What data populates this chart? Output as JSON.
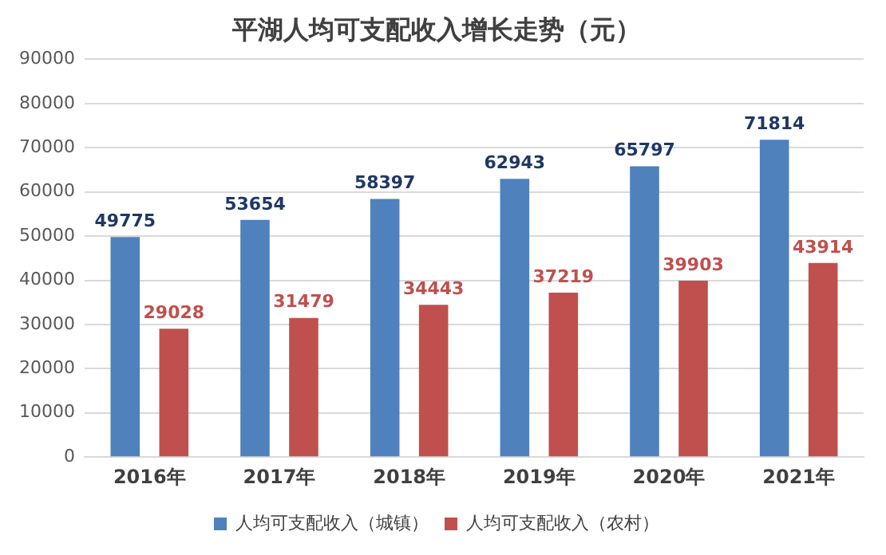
{
  "chart_data": {
    "type": "bar",
    "title": "平湖人均可支配收入增长走势（元）",
    "categories": [
      "2016年",
      "2017年",
      "2018年",
      "2019年",
      "2020年",
      "2021年"
    ],
    "series": [
      {
        "name": "人均可支配收入（城镇）",
        "color": "#4f81bd",
        "values": [
          49775,
          53654,
          58397,
          62943,
          65797,
          71814
        ]
      },
      {
        "name": "人均可支配收入（农村）",
        "color": "#c0504d",
        "values": [
          29028,
          31479,
          34443,
          37219,
          39903,
          43914
        ]
      }
    ],
    "ylim": [
      0,
      90000
    ],
    "yticks": [
      0,
      10000,
      20000,
      30000,
      40000,
      50000,
      60000,
      70000,
      80000,
      90000
    ],
    "grid": "y",
    "legend": "bottom",
    "data_labels": true
  }
}
